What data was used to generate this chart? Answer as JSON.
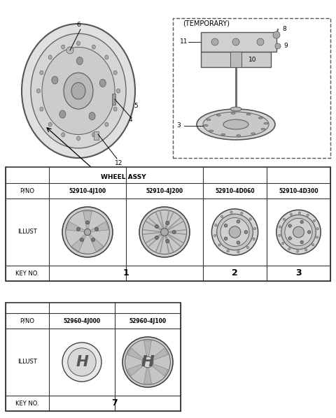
{
  "bg_color": "#ffffff",
  "table1": {
    "row_labels": [
      "KEY NO.",
      "ILLUST",
      "P/NO"
    ],
    "key_nos": [
      "1",
      "2",
      "3"
    ],
    "part_numbers": [
      "52910-4J100",
      "52910-4J200",
      "52910-4D060",
      "52910-4D300"
    ]
  },
  "table2": {
    "row_labels": [
      "KEY NO.",
      "ILLUST",
      "P/NO"
    ],
    "key_no": "7",
    "part_numbers": [
      "52960-4J000",
      "52960-4J100"
    ]
  },
  "wheel_assy_label": "WHEEL ASSY",
  "temporary_label": "(TEMPORARY)",
  "part_labels_left": [
    "12",
    "4",
    "5",
    "6"
  ],
  "part_labels_right": [
    "8",
    "9",
    "10",
    "11",
    "3"
  ]
}
